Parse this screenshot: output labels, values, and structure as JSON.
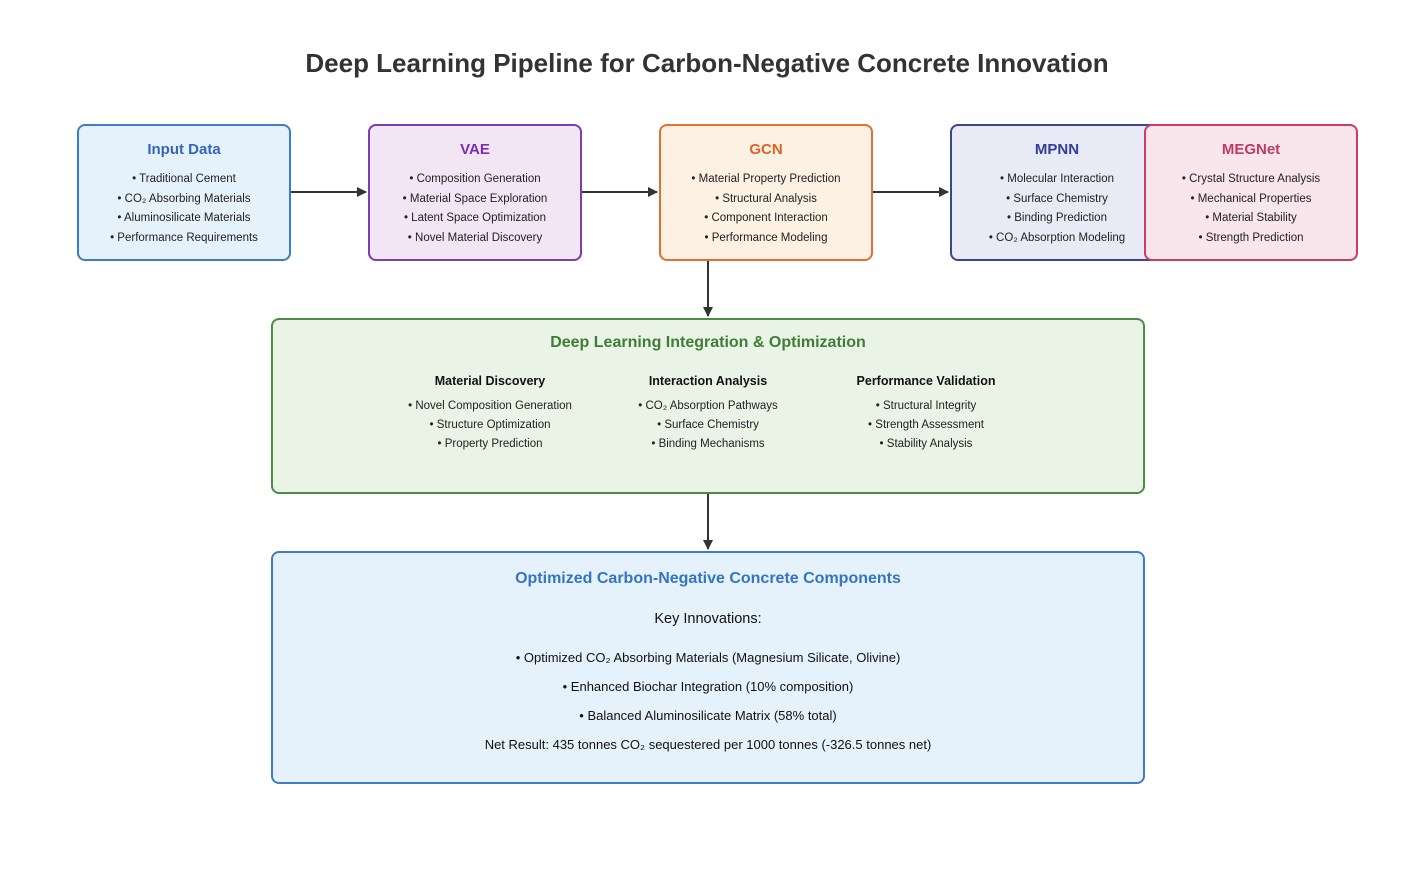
{
  "title": "Deep Learning Pipeline for Carbon-Negative Concrete Innovation",
  "input_data": {
    "title": "Input Data",
    "items": [
      "Traditional Cement",
      "CO₂ Absorbing Materials",
      "Aluminosilicate Materials",
      "Performance Requirements"
    ]
  },
  "vae": {
    "title": "VAE",
    "items": [
      "Composition Generation",
      "Material Space Exploration",
      "Latent Space Optimization",
      "Novel Material Discovery"
    ]
  },
  "gcn": {
    "title": "GCN",
    "items": [
      "Material Property Prediction",
      "Structural Analysis",
      "Component Interaction",
      "Performance Modeling"
    ]
  },
  "mpnn": {
    "title": "MPNN",
    "items": [
      "Molecular Interaction",
      "Surface Chemistry",
      "Binding Prediction",
      "CO₂ Absorption Modeling"
    ]
  },
  "megnet": {
    "title": "MEGNet",
    "items": [
      "Crystal Structure Analysis",
      "Mechanical Properties",
      "Material Stability",
      "Strength Prediction"
    ]
  },
  "integration": {
    "title": "Deep Learning Integration & Optimization",
    "columns": [
      {
        "title": "Material Discovery",
        "items": [
          "Novel Composition Generation",
          "Structure Optimization",
          "Property Prediction"
        ]
      },
      {
        "title": "Interaction Analysis",
        "items": [
          "CO₂ Absorption Pathways",
          "Surface Chemistry",
          "Binding Mechanisms"
        ]
      },
      {
        "title": "Performance Validation",
        "items": [
          "Structural Integrity",
          "Strength Assessment",
          "Stability Analysis"
        ]
      }
    ]
  },
  "output": {
    "title": "Optimized Carbon-Negative Concrete Components",
    "key_title": "Key Innovations:",
    "items": [
      "Optimized CO₂ Absorbing Materials (Magnesium Silicate, Olivine)",
      "Enhanced Biochar Integration (10% composition)",
      "Balanced Aluminosilicate Matrix (58% total)"
    ],
    "net_result": "Net Result: 435 tonnes CO₂ sequestered per 1000 tonnes (-326.5 tonnes net)"
  },
  "colors": {
    "arrow": "#333333",
    "input_border": "#3f7cc6",
    "vae_border": "#7d3cb0",
    "gcn_border": "#e07230",
    "mpnn_border": "#3c4495",
    "megnet_border": "#c93d68",
    "integration_border": "#4d8c44",
    "output_border": "#3f7cc6"
  }
}
